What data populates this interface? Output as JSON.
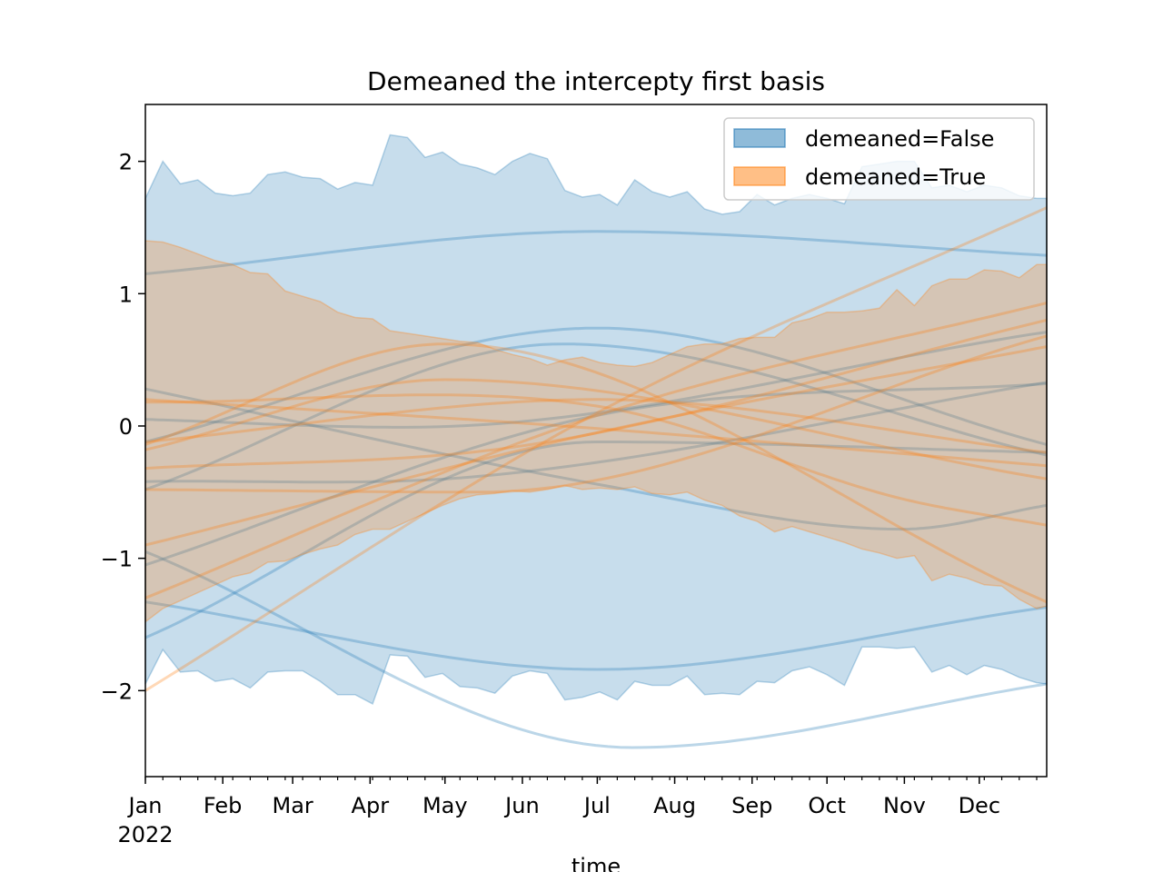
{
  "chart_data": {
    "type": "area",
    "title": "Demeaned the intercepty first basis",
    "xlabel": "time",
    "ylabel": "",
    "x_range": [
      "2022-01-01",
      "2022-12-28"
    ],
    "ylim": [
      -2.65,
      2.43
    ],
    "x_ticks": [
      {
        "date": "2022-01-01",
        "label": "Jan",
        "sublabel": "2022"
      },
      {
        "date": "2022-02-01",
        "label": "Feb"
      },
      {
        "date": "2022-03-01",
        "label": "Mar"
      },
      {
        "date": "2022-04-01",
        "label": "Apr"
      },
      {
        "date": "2022-05-01",
        "label": "May"
      },
      {
        "date": "2022-06-01",
        "label": "Jun"
      },
      {
        "date": "2022-07-01",
        "label": "Jul"
      },
      {
        "date": "2022-08-01",
        "label": "Aug"
      },
      {
        "date": "2022-09-01",
        "label": "Sep"
      },
      {
        "date": "2022-10-01",
        "label": "Oct"
      },
      {
        "date": "2022-11-01",
        "label": "Nov"
      },
      {
        "date": "2022-12-01",
        "label": "Dec"
      }
    ],
    "y_ticks": [
      {
        "value": -2,
        "label": "−2"
      },
      {
        "value": -1,
        "label": "−1"
      },
      {
        "value": 0,
        "label": "0"
      },
      {
        "value": 1,
        "label": "1"
      },
      {
        "value": 2,
        "label": "2"
      }
    ],
    "grid": false,
    "legend_position": "top-right",
    "series": [
      {
        "name": "demeaned=False",
        "color": "#1f77b4",
        "band": [
          [
            "2022-01-01",
            -1.95,
            1.72
          ],
          [
            "2022-01-08",
            -1.69,
            2.0
          ],
          [
            "2022-01-15",
            -1.86,
            1.83
          ],
          [
            "2022-01-22",
            -1.85,
            1.86
          ],
          [
            "2022-01-29",
            -1.93,
            1.76
          ],
          [
            "2022-02-05",
            -1.91,
            1.74
          ],
          [
            "2022-02-12",
            -1.98,
            1.76
          ],
          [
            "2022-02-19",
            -1.86,
            1.9
          ],
          [
            "2022-02-26",
            -1.85,
            1.92
          ],
          [
            "2022-03-05",
            -1.85,
            1.88
          ],
          [
            "2022-03-12",
            -1.93,
            1.87
          ],
          [
            "2022-03-19",
            -2.03,
            1.79
          ],
          [
            "2022-03-26",
            -2.03,
            1.84
          ],
          [
            "2022-04-02",
            -2.1,
            1.82
          ],
          [
            "2022-04-09",
            -1.73,
            2.2
          ],
          [
            "2022-04-16",
            -1.74,
            2.18
          ],
          [
            "2022-04-23",
            -1.9,
            2.03
          ],
          [
            "2022-04-30",
            -1.87,
            2.07
          ],
          [
            "2022-05-07",
            -1.97,
            1.98
          ],
          [
            "2022-05-14",
            -1.98,
            1.95
          ],
          [
            "2022-05-21",
            -2.02,
            1.9
          ],
          [
            "2022-05-28",
            -1.89,
            2.0
          ],
          [
            "2022-06-04",
            -1.85,
            2.06
          ],
          [
            "2022-06-11",
            -1.87,
            2.02
          ],
          [
            "2022-06-18",
            -2.07,
            1.78
          ],
          [
            "2022-06-25",
            -2.05,
            1.73
          ],
          [
            "2022-07-02",
            -2.01,
            1.75
          ],
          [
            "2022-07-09",
            -2.07,
            1.67
          ],
          [
            "2022-07-16",
            -1.93,
            1.86
          ],
          [
            "2022-07-23",
            -1.96,
            1.77
          ],
          [
            "2022-07-30",
            -1.96,
            1.73
          ],
          [
            "2022-08-06",
            -1.89,
            1.77
          ],
          [
            "2022-08-13",
            -2.03,
            1.64
          ],
          [
            "2022-08-20",
            -2.02,
            1.6
          ],
          [
            "2022-08-27",
            -2.03,
            1.62
          ],
          [
            "2022-09-03",
            -1.93,
            1.75
          ],
          [
            "2022-09-10",
            -1.94,
            1.67
          ],
          [
            "2022-09-17",
            -1.85,
            1.72
          ],
          [
            "2022-09-24",
            -1.82,
            1.75
          ],
          [
            "2022-10-01",
            -1.88,
            1.72
          ],
          [
            "2022-10-08",
            -1.96,
            1.68
          ],
          [
            "2022-10-15",
            -1.67,
            1.96
          ],
          [
            "2022-10-22",
            -1.67,
            1.98
          ],
          [
            "2022-10-29",
            -1.68,
            2.0
          ],
          [
            "2022-11-05",
            -1.67,
            2.0
          ],
          [
            "2022-11-12",
            -1.86,
            1.8
          ],
          [
            "2022-11-19",
            -1.81,
            1.82
          ],
          [
            "2022-11-26",
            -1.88,
            1.77
          ],
          [
            "2022-12-03",
            -1.81,
            1.82
          ],
          [
            "2022-12-10",
            -1.84,
            1.8
          ],
          [
            "2022-12-17",
            -1.9,
            1.74
          ],
          [
            "2022-12-24",
            -1.94,
            1.72
          ],
          [
            "2022-12-28",
            -1.95,
            1.72
          ]
        ],
        "lines": [
          [
            [
              "2022-01-01",
              1.15
            ],
            [
              "2022-07-01",
              1.47
            ],
            [
              "2022-12-28",
              1.29
            ]
          ],
          [
            [
              "2022-01-01",
              -0.12
            ],
            [
              "2022-07-01",
              0.74
            ],
            [
              "2022-12-28",
              -0.14
            ]
          ],
          [
            [
              "2022-01-01",
              -0.48
            ],
            [
              "2022-06-17",
              0.62
            ],
            [
              "2022-12-28",
              -0.22
            ]
          ],
          [
            [
              "2022-01-01",
              0.28
            ],
            [
              "2022-07-01",
              -0.44
            ],
            [
              "2022-10-31",
              -0.78
            ],
            [
              "2022-12-28",
              -0.6
            ]
          ],
          [
            [
              "2022-01-01",
              -1.33
            ],
            [
              "2022-07-01",
              -1.84
            ],
            [
              "2022-12-28",
              -1.37
            ]
          ],
          [
            [
              "2022-01-01",
              -1.6
            ],
            [
              "2022-07-01",
              -0.12
            ],
            [
              "2022-12-28",
              -0.2
            ]
          ],
          [
            [
              "2022-01-01",
              0.05
            ],
            [
              "2022-04-15",
              -0.01
            ],
            [
              "2022-12-28",
              0.71
            ]
          ],
          [
            [
              "2022-01-01",
              -0.42
            ],
            [
              "2022-05-15",
              -0.38
            ],
            [
              "2022-12-28",
              0.33
            ]
          ],
          [
            [
              "2022-01-01",
              -1.05
            ],
            [
              "2022-07-01",
              0.08
            ],
            [
              "2022-12-28",
              0.32
            ]
          ],
          [
            [
              "2022-01-01",
              -0.95
            ],
            [
              "2022-07-15",
              -2.43
            ],
            [
              "2022-12-28",
              -1.95
            ]
          ]
        ]
      },
      {
        "name": "demeaned=True",
        "color": "#ff7f0e",
        "band": [
          [
            "2022-01-01",
            -1.48,
            1.4
          ],
          [
            "2022-01-08",
            -1.38,
            1.39
          ],
          [
            "2022-01-15",
            -1.32,
            1.35
          ],
          [
            "2022-01-22",
            -1.26,
            1.3
          ],
          [
            "2022-01-29",
            -1.2,
            1.25
          ],
          [
            "2022-02-05",
            -1.14,
            1.22
          ],
          [
            "2022-02-12",
            -1.11,
            1.16
          ],
          [
            "2022-02-19",
            -1.03,
            1.15
          ],
          [
            "2022-02-26",
            -1.02,
            1.02
          ],
          [
            "2022-03-05",
            -0.97,
            0.98
          ],
          [
            "2022-03-12",
            -0.93,
            0.94
          ],
          [
            "2022-03-19",
            -0.9,
            0.86
          ],
          [
            "2022-03-26",
            -0.82,
            0.82
          ],
          [
            "2022-04-02",
            -0.78,
            0.81
          ],
          [
            "2022-04-09",
            -0.78,
            0.72
          ],
          [
            "2022-04-16",
            -0.72,
            0.7
          ],
          [
            "2022-04-23",
            -0.66,
            0.68
          ],
          [
            "2022-04-30",
            -0.6,
            0.66
          ],
          [
            "2022-05-07",
            -0.55,
            0.64
          ],
          [
            "2022-05-14",
            -0.52,
            0.63
          ],
          [
            "2022-05-21",
            -0.51,
            0.58
          ],
          [
            "2022-05-28",
            -0.49,
            0.54
          ],
          [
            "2022-06-04",
            -0.5,
            0.51
          ],
          [
            "2022-06-11",
            -0.48,
            0.46
          ],
          [
            "2022-06-18",
            -0.45,
            0.5
          ],
          [
            "2022-06-25",
            -0.48,
            0.52
          ],
          [
            "2022-07-02",
            -0.47,
            0.48
          ],
          [
            "2022-07-09",
            -0.48,
            0.46
          ],
          [
            "2022-07-16",
            -0.46,
            0.45
          ],
          [
            "2022-07-23",
            -0.51,
            0.48
          ],
          [
            "2022-07-30",
            -0.52,
            0.54
          ],
          [
            "2022-08-06",
            -0.5,
            0.6
          ],
          [
            "2022-08-13",
            -0.56,
            0.62
          ],
          [
            "2022-08-20",
            -0.6,
            0.62
          ],
          [
            "2022-08-27",
            -0.68,
            0.66
          ],
          [
            "2022-09-03",
            -0.72,
            0.67
          ],
          [
            "2022-09-10",
            -0.8,
            0.67
          ],
          [
            "2022-09-17",
            -0.76,
            0.78
          ],
          [
            "2022-09-24",
            -0.8,
            0.81
          ],
          [
            "2022-10-01",
            -0.84,
            0.86
          ],
          [
            "2022-10-08",
            -0.88,
            0.86
          ],
          [
            "2022-10-15",
            -0.93,
            0.87
          ],
          [
            "2022-10-22",
            -0.96,
            0.89
          ],
          [
            "2022-10-29",
            -1.0,
            1.03
          ],
          [
            "2022-11-05",
            -0.98,
            0.91
          ],
          [
            "2022-11-12",
            -1.17,
            1.06
          ],
          [
            "2022-11-19",
            -1.12,
            1.11
          ],
          [
            "2022-11-26",
            -1.15,
            1.11
          ],
          [
            "2022-12-03",
            -1.2,
            1.18
          ],
          [
            "2022-12-10",
            -1.21,
            1.17
          ],
          [
            "2022-12-17",
            -1.31,
            1.12
          ],
          [
            "2022-12-24",
            -1.38,
            1.22
          ],
          [
            "2022-12-28",
            -1.36,
            1.22
          ]
        ],
        "lines": [
          [
            [
              "2022-01-01",
              -2.0
            ],
            [
              "2022-07-01",
              0.1
            ],
            [
              "2022-12-28",
              1.65
            ]
          ],
          [
            [
              "2022-01-01",
              -0.14
            ],
            [
              "2022-05-01",
              0.62
            ],
            [
              "2022-12-28",
              -1.33
            ]
          ],
          [
            [
              "2022-01-01",
              -1.3
            ],
            [
              "2022-07-01",
              0.08
            ],
            [
              "2022-12-28",
              0.93
            ]
          ],
          [
            [
              "2022-01-01",
              -0.18
            ],
            [
              "2022-05-01",
              0.35
            ],
            [
              "2022-12-28",
              -0.4
            ]
          ],
          [
            [
              "2022-01-01",
              0.18
            ],
            [
              "2022-07-01",
              0.15
            ],
            [
              "2022-10-31",
              -0.55
            ],
            [
              "2022-12-28",
              -0.75
            ]
          ],
          [
            [
              "2022-01-01",
              0.2
            ],
            [
              "2022-06-17",
              0.0
            ],
            [
              "2022-12-28",
              -0.3
            ]
          ],
          [
            [
              "2022-01-01",
              -0.12
            ],
            [
              "2022-07-01",
              0.2
            ],
            [
              "2022-12-28",
              -0.2
            ]
          ],
          [
            [
              "2022-01-01",
              -0.32
            ],
            [
              "2022-06-01",
              -0.15
            ],
            [
              "2022-12-28",
              0.8
            ]
          ],
          [
            [
              "2022-01-01",
              -0.9
            ],
            [
              "2022-07-01",
              -0.05
            ],
            [
              "2022-12-28",
              0.6
            ]
          ],
          [
            [
              "2022-01-01",
              -0.48
            ],
            [
              "2022-05-15",
              -0.5
            ],
            [
              "2022-12-28",
              0.68
            ]
          ]
        ]
      }
    ]
  }
}
